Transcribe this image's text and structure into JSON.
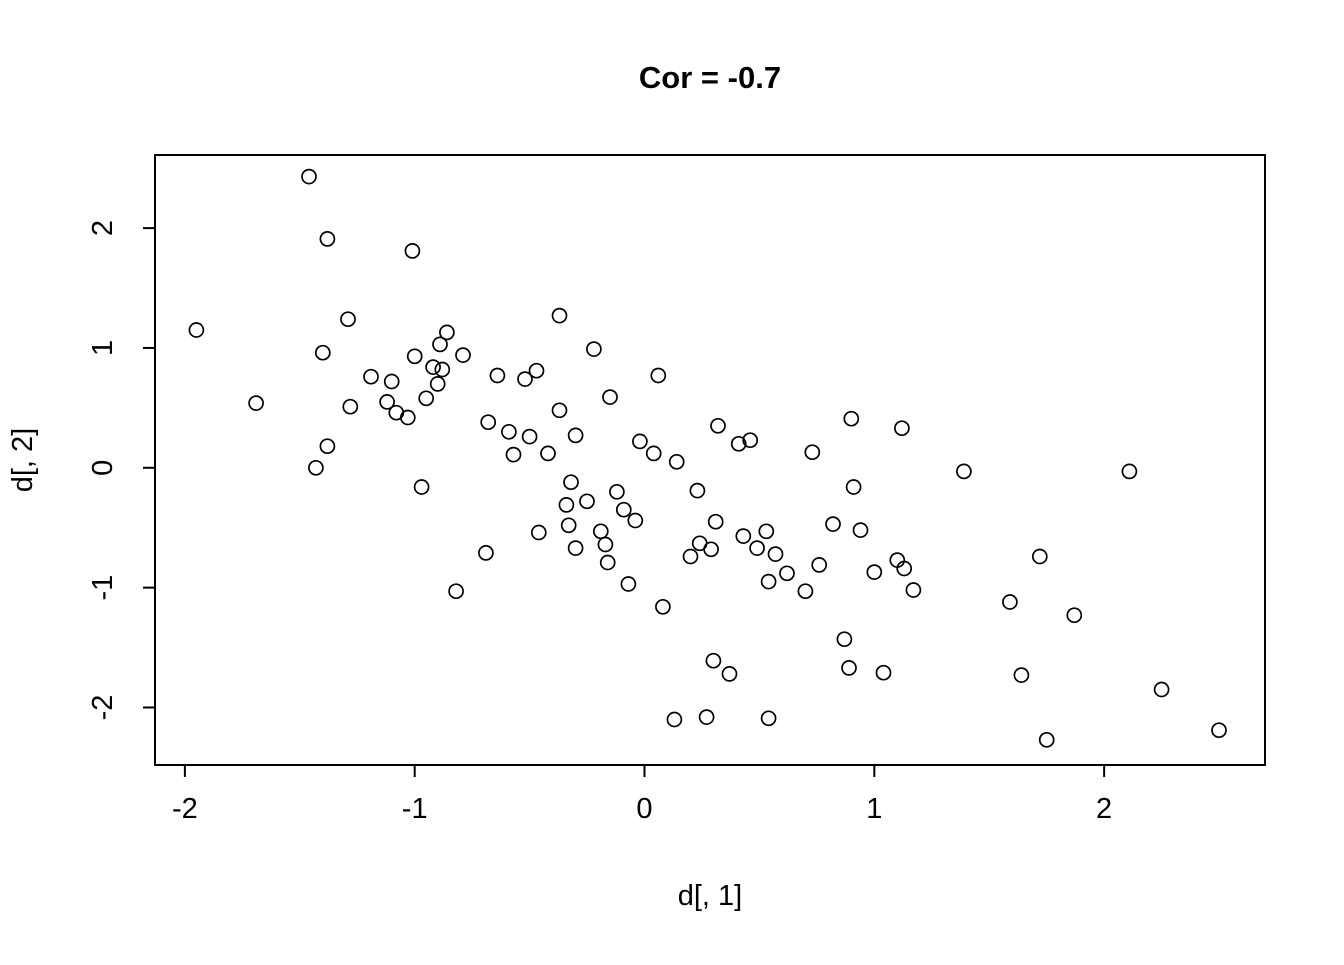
{
  "chart_data": {
    "type": "scatter",
    "title": "Cor = -0.7",
    "xlabel": "d[, 1]",
    "ylabel": "d[, 2]",
    "marker": "open-circle",
    "grid": false,
    "legend": null,
    "background_color": "#ffffff",
    "point_stroke_color": "#000000",
    "xlim": [
      -2.13,
      2.7
    ],
    "ylim": [
      -2.48,
      2.61
    ],
    "x_ticks": [
      "-2",
      "-1",
      "0",
      "1",
      "2"
    ],
    "y_ticks": [
      "-2",
      "-1",
      "0",
      "1",
      "2"
    ],
    "x_tick_values": [
      -2,
      -1,
      0,
      1,
      2
    ],
    "y_tick_values": [
      -2,
      -1,
      0,
      1,
      2
    ],
    "points": [
      [
        -1.46,
        2.43
      ],
      [
        -1.38,
        1.91
      ],
      [
        -1.01,
        1.81
      ],
      [
        -1.95,
        1.15
      ],
      [
        -1.29,
        1.24
      ],
      [
        -0.37,
        1.27
      ],
      [
        -0.86,
        1.13
      ],
      [
        -1.4,
        0.96
      ],
      [
        -0.89,
        1.03
      ],
      [
        -0.79,
        0.94
      ],
      [
        -1.0,
        0.93
      ],
      [
        -0.22,
        0.99
      ],
      [
        -0.88,
        0.82
      ],
      [
        -1.19,
        0.76
      ],
      [
        -1.1,
        0.72
      ],
      [
        -0.92,
        0.84
      ],
      [
        -0.9,
        0.7
      ],
      [
        -0.64,
        0.77
      ],
      [
        -0.52,
        0.74
      ],
      [
        -0.47,
        0.81
      ],
      [
        0.06,
        0.77
      ],
      [
        -1.69,
        0.54
      ],
      [
        -1.28,
        0.51
      ],
      [
        -1.12,
        0.55
      ],
      [
        -1.08,
        0.46
      ],
      [
        -0.95,
        0.58
      ],
      [
        -0.37,
        0.48
      ],
      [
        -0.15,
        0.59
      ],
      [
        -1.03,
        0.42
      ],
      [
        -0.68,
        0.38
      ],
      [
        -0.3,
        0.27
      ],
      [
        0.32,
        0.35
      ],
      [
        0.9,
        0.41
      ],
      [
        1.12,
        0.33
      ],
      [
        -1.38,
        0.18
      ],
      [
        -0.59,
        0.3
      ],
      [
        -0.5,
        0.26
      ],
      [
        -0.42,
        0.12
      ],
      [
        -0.02,
        0.22
      ],
      [
        0.41,
        0.2
      ],
      [
        0.46,
        0.23
      ],
      [
        0.73,
        0.13
      ],
      [
        -1.43,
        0.0
      ],
      [
        -0.57,
        0.11
      ],
      [
        0.04,
        0.12
      ],
      [
        0.14,
        0.05
      ],
      [
        1.39,
        -0.03
      ],
      [
        2.11,
        -0.03
      ],
      [
        -0.32,
        -0.12
      ],
      [
        -0.12,
        -0.2
      ],
      [
        -0.97,
        -0.16
      ],
      [
        0.23,
        -0.19
      ],
      [
        0.91,
        -0.16
      ],
      [
        -0.34,
        -0.31
      ],
      [
        -0.09,
        -0.35
      ],
      [
        -0.25,
        -0.28
      ],
      [
        -0.33,
        -0.48
      ],
      [
        -0.46,
        -0.54
      ],
      [
        -0.19,
        -0.53
      ],
      [
        -0.04,
        -0.44
      ],
      [
        0.31,
        -0.45
      ],
      [
        0.82,
        -0.47
      ],
      [
        0.94,
        -0.52
      ],
      [
        0.43,
        -0.57
      ],
      [
        0.53,
        -0.53
      ],
      [
        -0.3,
        -0.67
      ],
      [
        -0.17,
        -0.64
      ],
      [
        0.24,
        -0.63
      ],
      [
        0.29,
        -0.68
      ],
      [
        0.49,
        -0.67
      ],
      [
        0.57,
        -0.72
      ],
      [
        -0.69,
        -0.71
      ],
      [
        -0.16,
        -0.79
      ],
      [
        0.2,
        -0.74
      ],
      [
        0.62,
        -0.88
      ],
      [
        0.76,
        -0.81
      ],
      [
        1.0,
        -0.87
      ],
      [
        1.1,
        -0.77
      ],
      [
        1.13,
        -0.84
      ],
      [
        1.72,
        -0.74
      ],
      [
        -0.07,
        -0.97
      ],
      [
        0.54,
        -0.95
      ],
      [
        0.7,
        -1.03
      ],
      [
        1.17,
        -1.02
      ],
      [
        -0.82,
        -1.03
      ],
      [
        1.59,
        -1.12
      ],
      [
        0.08,
        -1.16
      ],
      [
        1.87,
        -1.23
      ],
      [
        0.87,
        -1.43
      ],
      [
        0.3,
        -1.61
      ],
      [
        0.37,
        -1.72
      ],
      [
        0.89,
        -1.67
      ],
      [
        1.04,
        -1.71
      ],
      [
        1.64,
        -1.73
      ],
      [
        2.25,
        -1.85
      ],
      [
        0.13,
        -2.1
      ],
      [
        0.27,
        -2.08
      ],
      [
        0.54,
        -2.09
      ],
      [
        2.5,
        -2.19
      ],
      [
        1.75,
        -2.27
      ]
    ]
  }
}
